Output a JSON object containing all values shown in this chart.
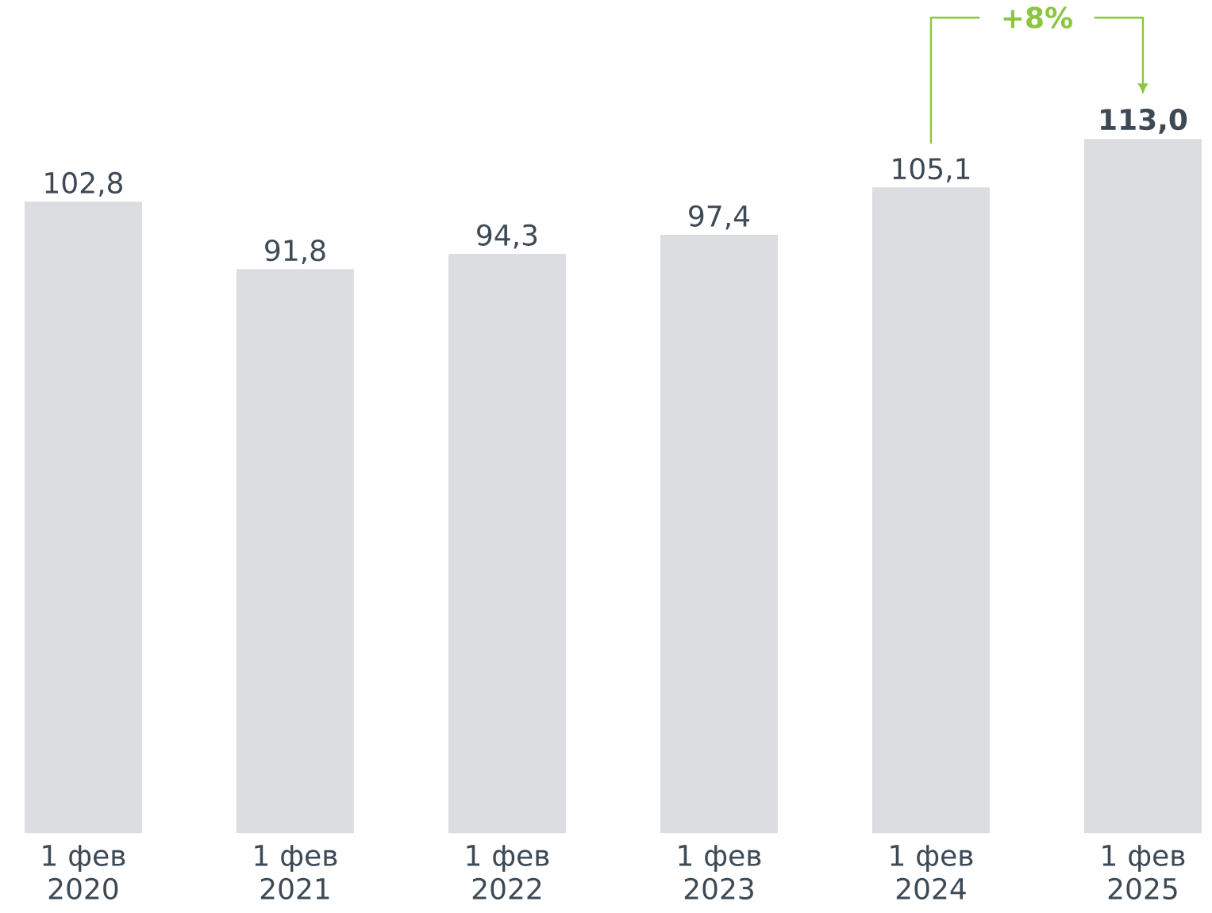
{
  "chart_data": {
    "type": "bar",
    "categories": [
      "1 фев 2020",
      "1 фев 2021",
      "1 фев 2022",
      "1 фев 2023",
      "1 фев 2024",
      "1 фев 2025"
    ],
    "values": [
      102.8,
      91.8,
      94.3,
      97.4,
      105.1,
      113.0
    ],
    "value_labels": [
      "102,8",
      "91,8",
      "94,3",
      "97,4",
      "105,1",
      "**113,0**"
    ],
    "color": "#dcdde0",
    "annotations": [
      "+8%"
    ]
  }
}
